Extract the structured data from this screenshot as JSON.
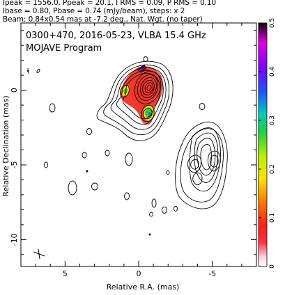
{
  "header": {
    "lines": [
      "Ipeak = 1556.0, Ppeak = 20.1, I RMS = 0.09, P RMS = 0.10",
      "Ibase = 0.80, Pbase = 0.74 (mJy/beam), steps: x 2",
      "Beam: 0.84x0.54 mas at -7.2 deg., Nat. Wgt. (no taper)"
    ]
  },
  "chart_data": {
    "type": "heatmap",
    "title": "0300+470, 2016-05-23, VLBA 15.4 GHz",
    "subtitle": "MOJAVE Program",
    "xlabel": "Relative R.A. (mas)",
    "ylabel": "Relative Declination (mas)",
    "xlim": [
      8,
      -8
    ],
    "ylim": [
      -11.8,
      4.5
    ],
    "xticks": [
      {
        "value": 5,
        "label": "5"
      },
      {
        "value": 0,
        "label": "0"
      },
      {
        "value": -5,
        "label": "-5"
      }
    ],
    "yticks": [
      {
        "value": 0,
        "label": "0"
      },
      {
        "value": -5,
        "label": "-5"
      },
      {
        "value": -10,
        "label": "-10"
      }
    ],
    "colorbar": {
      "min": 0,
      "max": 0.5,
      "ticks": [
        {
          "value": 0,
          "label": "0"
        },
        {
          "value": 0.1,
          "label": "0.1"
        },
        {
          "value": 0.2,
          "label": "0.2"
        },
        {
          "value": 0.3,
          "label": "0.3"
        },
        {
          "value": 0.4,
          "label": "0.4"
        },
        {
          "value": 0.5,
          "label": "0.5"
        }
      ]
    },
    "beam": {
      "major_mas": 0.84,
      "minor_mas": 0.54,
      "pa_deg": -7.2
    },
    "colors": {
      "core_fill": "#e84030",
      "knot_green": "#33cc44",
      "contour": "#000000"
    }
  }
}
